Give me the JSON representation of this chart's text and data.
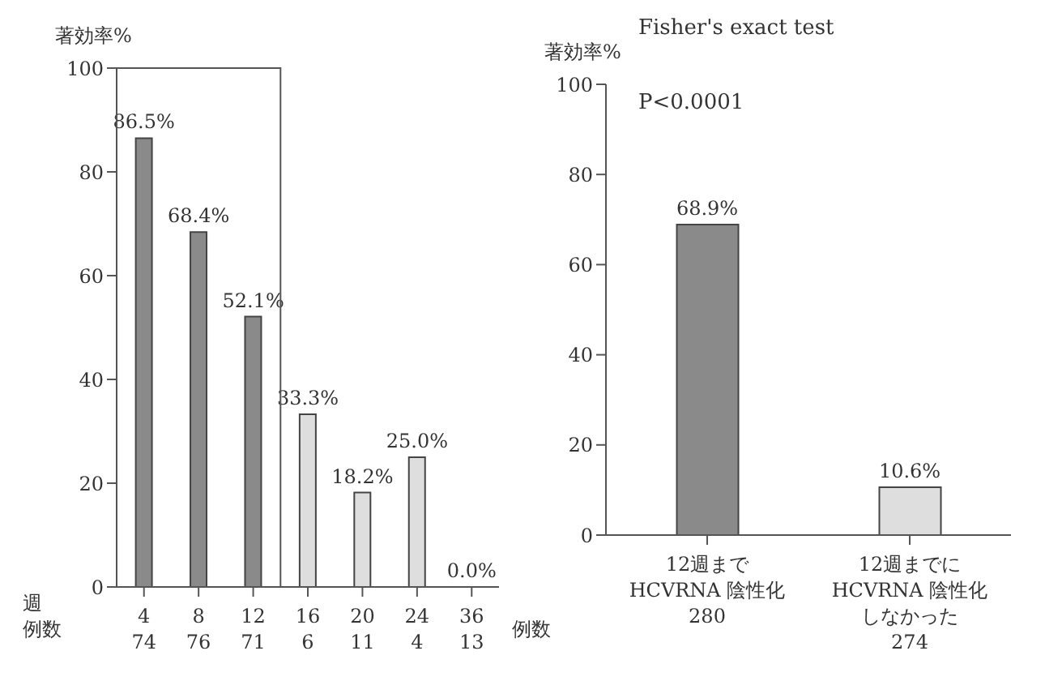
{
  "chart_data": [
    {
      "type": "bar",
      "ylabel": "著効率%",
      "categories": [
        "4\n74",
        "8\n76",
        "12\n71",
        "16\n6",
        "20\n11",
        "24\n4",
        "36\n13"
      ],
      "values": [
        86.5,
        68.4,
        52.1,
        33.3,
        18.2,
        25.0,
        0.0
      ],
      "colors": [
        "#8a8a8a",
        "#8a8a8a",
        "#8a8a8a",
        "#dedede",
        "#dedede",
        "#dedede",
        "#dedede"
      ],
      "value_labels": [
        "86.5%",
        "68.4%",
        "52.1%",
        "33.3%",
        "18.2%",
        "25.0%",
        "0.0%"
      ],
      "ylim": [
        0,
        100
      ],
      "yticks": [
        0,
        20,
        40,
        60,
        80,
        100
      ],
      "grid": false,
      "legend": false,
      "annotations": [
        "週",
        "例数"
      ]
    },
    {
      "type": "bar",
      "title": "Fisher's exact test",
      "ylabel": "著効率%",
      "categories": [
        "12週まで\nHCVRNA 陰性化\n\n280",
        "12週までに\nHCVRNA 陰性化しなかった\n274"
      ],
      "values": [
        68.9,
        10.6
      ],
      "colors": [
        "#8a8a8a",
        "#dedede"
      ],
      "value_labels": [
        "68.9%",
        "10.6%"
      ],
      "ylim": [
        0,
        100
      ],
      "yticks": [
        0,
        20,
        40,
        60,
        80,
        100
      ],
      "grid": false,
      "legend": false,
      "annotations": [
        "P<0.0001",
        "例数"
      ]
    }
  ]
}
